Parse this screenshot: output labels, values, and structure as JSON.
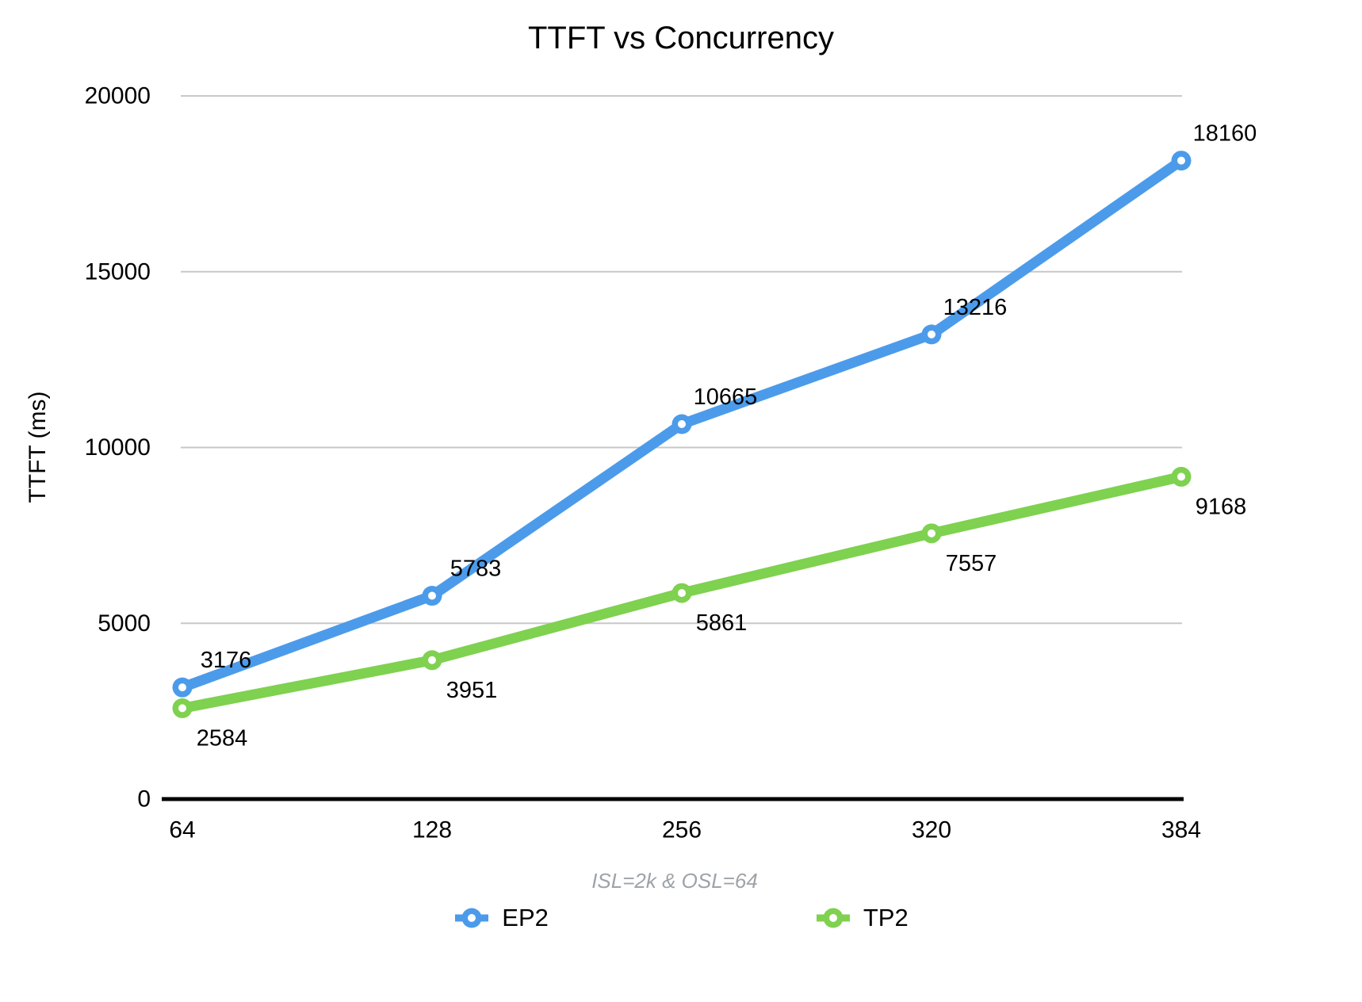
{
  "chart": {
    "title": "TTFT vs Concurrency",
    "y_axis_title": "TTFT (ms)",
    "subtitle": "ISL=2k & OSL=64"
  },
  "chart_data": {
    "type": "line",
    "title": "TTFT vs Concurrency",
    "ylabel": "TTFT (ms)",
    "x_axis_note": "ISL=2k & OSL=64",
    "categories": [
      "64",
      "128",
      "256",
      "320",
      "384"
    ],
    "series": [
      {
        "name": "EP2",
        "color": "#4C9BEA",
        "values": [
          3176,
          5783,
          10665,
          13216,
          18160
        ],
        "label_position": "above"
      },
      {
        "name": "TP2",
        "color": "#7FD150",
        "values": [
          2584,
          3951,
          5861,
          7557,
          9168
        ],
        "label_position": "below"
      }
    ],
    "ylim": [
      0,
      20000
    ],
    "yticks": [
      0,
      5000,
      10000,
      15000,
      20000
    ],
    "grid": "horizontal",
    "legend_position": "bottom",
    "marker_style": "donut"
  },
  "colors": {
    "gridline": "#C8C8C8",
    "axis_line": "#000000",
    "tick_text": "#000000",
    "data_label_text": "#000000",
    "subtitle_text": "#9EA3A8"
  }
}
